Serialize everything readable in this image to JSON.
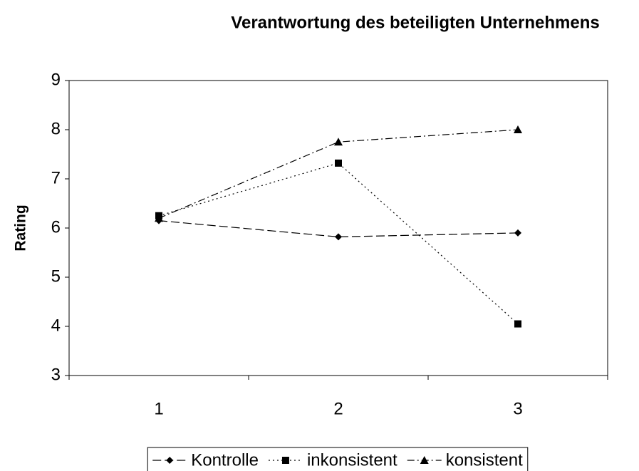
{
  "chart_data": {
    "type": "line",
    "title": "Verantwortung des beteiligten Unternehmens",
    "y_label": "Rating",
    "categories": [
      "1",
      "2",
      "3"
    ],
    "series": [
      {
        "name": "Kontrolle",
        "color": "#000000",
        "marker": "diamond",
        "dash": "12 5",
        "values": [
          6.15,
          5.82,
          5.9
        ]
      },
      {
        "name": "inkonsistent",
        "color": "#000000",
        "marker": "square",
        "dash": "2 4",
        "values": [
          6.25,
          7.32,
          4.05
        ]
      },
      {
        "name": "konsistent",
        "color": "#000000",
        "marker": "triangle",
        "dash": "10 4 2 4",
        "values": [
          6.2,
          7.75,
          8.0
        ]
      }
    ],
    "ylim": [
      3,
      9
    ],
    "yticks": [
      3,
      4,
      5,
      6,
      7,
      8,
      9
    ],
    "legend": "bottom"
  }
}
